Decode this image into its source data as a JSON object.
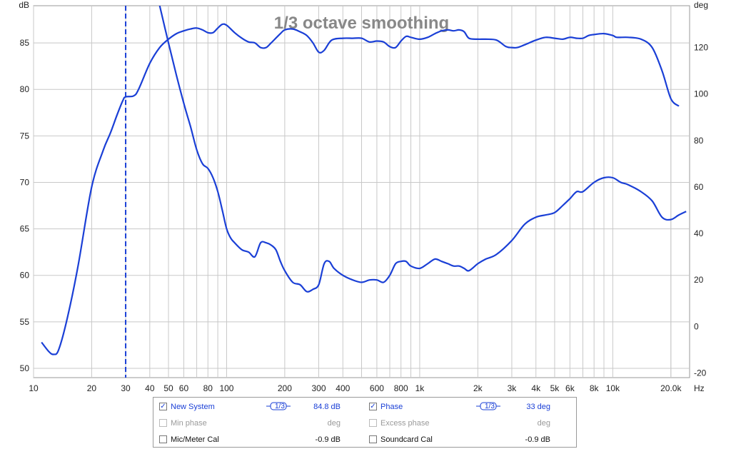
{
  "chart_data": {
    "type": "line",
    "title": "1/3 octave smoothing",
    "x_unit": "Hz",
    "x_scale": "log",
    "xlim": [
      10,
      25000
    ],
    "y_left": {
      "unit": "dB",
      "ylim": [
        49,
        89
      ],
      "ticks": [
        50,
        55,
        60,
        65,
        70,
        75,
        80,
        85
      ]
    },
    "y_right": {
      "unit": "deg",
      "ylim": [
        -22,
        138
      ],
      "ticks": [
        -20,
        0,
        20,
        40,
        60,
        80,
        100,
        120
      ]
    },
    "x_ticks": [
      "10",
      "20",
      "30",
      "40",
      "50",
      "60",
      "80",
      "100",
      "200",
      "300",
      "400",
      "600",
      "800",
      "1k",
      "2k",
      "3k",
      "4k",
      "5k",
      "6k",
      "8k",
      "10k",
      "20.0k"
    ],
    "grid": true,
    "marker_frequency": 30,
    "series": [
      {
        "name": "New System",
        "axis": "left",
        "color": "#1a3fd6",
        "points": [
          [
            11,
            52.8
          ],
          [
            12,
            51.8
          ],
          [
            12.7,
            51.5
          ],
          [
            13.5,
            52
          ],
          [
            15,
            55.5
          ],
          [
            17,
            61
          ],
          [
            20,
            69.5
          ],
          [
            23,
            73.5
          ],
          [
            25,
            75.3
          ],
          [
            27,
            77.2
          ],
          [
            29,
            78.8
          ],
          [
            30,
            79.2
          ],
          [
            33,
            79.3
          ],
          [
            35,
            80
          ],
          [
            40,
            82.8
          ],
          [
            45,
            84.5
          ],
          [
            50,
            85.4
          ],
          [
            55,
            86
          ],
          [
            60,
            86.3
          ],
          [
            65,
            86.5
          ],
          [
            70,
            86.6
          ],
          [
            75,
            86.4
          ],
          [
            80,
            86.1
          ],
          [
            85,
            86.1
          ],
          [
            90,
            86.6
          ],
          [
            95,
            87
          ],
          [
            100,
            86.9
          ],
          [
            110,
            86.1
          ],
          [
            120,
            85.5
          ],
          [
            130,
            85.1
          ],
          [
            140,
            85
          ],
          [
            150,
            84.5
          ],
          [
            160,
            84.5
          ],
          [
            170,
            85
          ],
          [
            190,
            86
          ],
          [
            200,
            86.4
          ],
          [
            220,
            86.5
          ],
          [
            240,
            86.2
          ],
          [
            260,
            85.8
          ],
          [
            280,
            85
          ],
          [
            300,
            84
          ],
          [
            320,
            84.2
          ],
          [
            350,
            85.3
          ],
          [
            400,
            85.5
          ],
          [
            450,
            85.5
          ],
          [
            500,
            85.5
          ],
          [
            550,
            85.1
          ],
          [
            600,
            85.2
          ],
          [
            650,
            85.1
          ],
          [
            700,
            84.6
          ],
          [
            750,
            84.5
          ],
          [
            800,
            85.2
          ],
          [
            850,
            85.7
          ],
          [
            900,
            85.6
          ],
          [
            1000,
            85.4
          ],
          [
            1100,
            85.6
          ],
          [
            1200,
            86
          ],
          [
            1300,
            86.3
          ],
          [
            1400,
            86.4
          ],
          [
            1500,
            86.3
          ],
          [
            1600,
            86.4
          ],
          [
            1700,
            86.2
          ],
          [
            1800,
            85.5
          ],
          [
            2000,
            85.4
          ],
          [
            2200,
            85.4
          ],
          [
            2500,
            85.3
          ],
          [
            2800,
            84.6
          ],
          [
            3000,
            84.5
          ],
          [
            3200,
            84.5
          ],
          [
            3500,
            84.8
          ],
          [
            4000,
            85.3
          ],
          [
            4500,
            85.6
          ],
          [
            5000,
            85.5
          ],
          [
            5500,
            85.4
          ],
          [
            6000,
            85.6
          ],
          [
            6500,
            85.5
          ],
          [
            7000,
            85.5
          ],
          [
            7500,
            85.8
          ],
          [
            8000,
            85.9
          ],
          [
            9000,
            86
          ],
          [
            10000,
            85.8
          ],
          [
            10500,
            85.6
          ],
          [
            12000,
            85.6
          ],
          [
            14000,
            85.4
          ],
          [
            16000,
            84.5
          ],
          [
            18000,
            82
          ],
          [
            20000,
            79
          ],
          [
            22000,
            78.2
          ]
        ]
      },
      {
        "name": "Phase",
        "axis": "right",
        "color": "#1a3fd6",
        "points": [
          [
            45,
            138
          ],
          [
            50,
            122
          ],
          [
            55,
            108
          ],
          [
            60,
            96
          ],
          [
            65,
            86
          ],
          [
            70,
            76
          ],
          [
            75,
            70
          ],
          [
            80,
            68
          ],
          [
            85,
            64
          ],
          [
            90,
            58
          ],
          [
            95,
            50
          ],
          [
            100,
            42
          ],
          [
            105,
            38
          ],
          [
            110,
            36
          ],
          [
            120,
            33
          ],
          [
            130,
            32
          ],
          [
            140,
            30
          ],
          [
            150,
            36
          ],
          [
            160,
            36
          ],
          [
            170,
            35
          ],
          [
            180,
            33
          ],
          [
            190,
            28
          ],
          [
            200,
            24
          ],
          [
            220,
            19
          ],
          [
            240,
            18
          ],
          [
            260,
            15
          ],
          [
            280,
            16
          ],
          [
            300,
            18
          ],
          [
            320,
            27
          ],
          [
            340,
            28
          ],
          [
            360,
            25
          ],
          [
            400,
            22
          ],
          [
            450,
            20
          ],
          [
            500,
            19
          ],
          [
            550,
            20
          ],
          [
            600,
            20
          ],
          [
            650,
            19
          ],
          [
            700,
            22
          ],
          [
            750,
            27
          ],
          [
            800,
            28
          ],
          [
            850,
            28
          ],
          [
            900,
            26
          ],
          [
            1000,
            25
          ],
          [
            1100,
            27
          ],
          [
            1200,
            29
          ],
          [
            1300,
            28
          ],
          [
            1400,
            27
          ],
          [
            1500,
            26
          ],
          [
            1600,
            26
          ],
          [
            1700,
            25
          ],
          [
            1800,
            24
          ],
          [
            2000,
            27
          ],
          [
            2200,
            29
          ],
          [
            2500,
            31
          ],
          [
            3000,
            37
          ],
          [
            3500,
            44
          ],
          [
            4000,
            47
          ],
          [
            4500,
            48
          ],
          [
            5000,
            49
          ],
          [
            5500,
            52
          ],
          [
            6000,
            55
          ],
          [
            6500,
            58
          ],
          [
            7000,
            58
          ],
          [
            8000,
            62
          ],
          [
            9000,
            64
          ],
          [
            10000,
            64
          ],
          [
            11000,
            62
          ],
          [
            12000,
            61
          ],
          [
            14000,
            58
          ],
          [
            16000,
            54
          ],
          [
            18000,
            47
          ],
          [
            20000,
            46
          ],
          [
            22000,
            48
          ],
          [
            24000,
            49.5
          ]
        ]
      }
    ]
  },
  "legend": {
    "row1": {
      "left_label": "New System",
      "left_smoothing": "1/3",
      "left_value": "84.8 dB",
      "right_label": "Phase",
      "right_smoothing": "1/3",
      "right_value": "33 deg"
    },
    "row2": {
      "left_label": "Min phase",
      "left_value": "deg",
      "right_label": "Excess phase",
      "right_value": "deg"
    },
    "row3": {
      "left_label": "Mic/Meter Cal",
      "left_value": "-0.9 dB",
      "right_label": "Soundcard Cal",
      "right_value": "-0.9 dB"
    }
  },
  "colors": {
    "series": "#1a3fd6",
    "grid": "#c8c8c8",
    "title": "#888888",
    "disabled": "#9a9a9a"
  }
}
